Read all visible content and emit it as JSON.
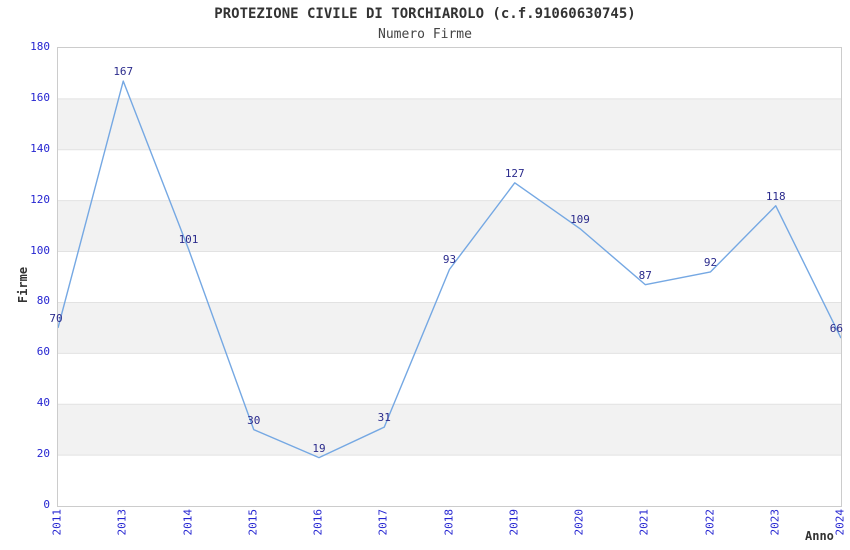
{
  "chart_data": {
    "type": "line",
    "title": "PROTEZIONE CIVILE DI TORCHIAROLO (c.f.91060630745)",
    "subtitle": "Numero Firme",
    "xlabel": "Anno",
    "ylabel": "Firme",
    "categories": [
      "2011",
      "2013",
      "2014",
      "2015",
      "2016",
      "2017",
      "2018",
      "2019",
      "2020",
      "2021",
      "2022",
      "2023",
      "2024"
    ],
    "values": [
      70,
      167,
      101,
      30,
      19,
      31,
      93,
      127,
      109,
      87,
      92,
      118,
      66
    ],
    "ylim": [
      0,
      180
    ],
    "ytick_step": 20,
    "yticks": [
      0,
      20,
      40,
      60,
      80,
      100,
      120,
      140,
      160,
      180
    ],
    "grid": "horizontal gridlines with alternating shaded bands",
    "legend": "none",
    "markers": "none",
    "data_labels": "above each point",
    "colors": {
      "line": "#75a8e3",
      "data_label": "#2b2b8c",
      "tick_label": "#2525d1",
      "band": "#f2f2f2",
      "gridline": "#e2e2e2",
      "plot_border": "#cccccc",
      "title": "#333333",
      "subtitle": "#444444",
      "axis_title": "#333333",
      "background": "#ffffff"
    }
  }
}
